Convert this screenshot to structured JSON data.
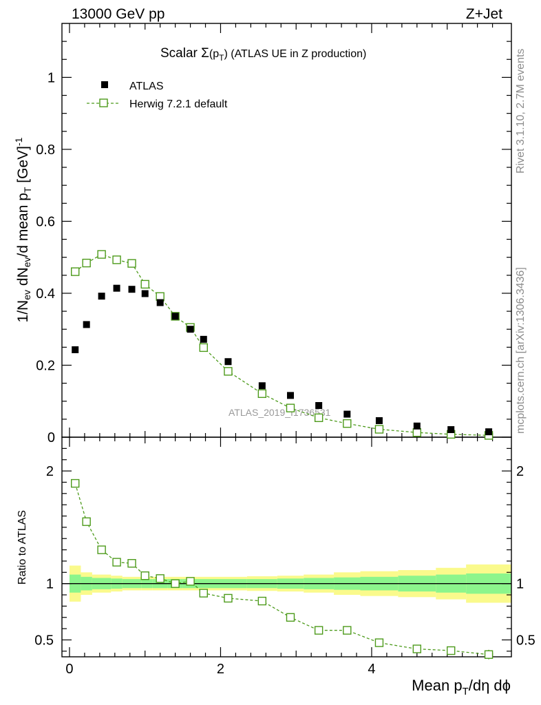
{
  "header": {
    "energy_label": "13000 GeV pp",
    "process_label": "Z+Jet"
  },
  "side_labels": {
    "rivet": "Rivet 3.1.10,  2.7M events",
    "mcplots": "mcplots.cern.ch [arXiv:1306.3436]"
  },
  "colors": {
    "mc": "#4c9a1a",
    "band_inner": "#8cf58c",
    "band_outer": "#fafa8c",
    "data": "#000000",
    "watermark": "#999999"
  },
  "chart_data": [
    {
      "id": "main",
      "type": "scatter",
      "title": "Scalar Σ(p_T) (ATLAS UE in Z production)",
      "title_parts": {
        "pre": "Scalar ",
        "sigma": "Σ",
        "open": "(p",
        "sub": "T",
        "close": ")",
        "post": " (ATLAS UE in Z production)"
      },
      "ylabel": "1/N_ev dN_ev/d mean p_T [GeV]^-1",
      "ylabel_parts": {
        "a": "1/N",
        "a_sub": "ev",
        "b": " dN",
        "b_sub": "ev",
        "c": "/d mean p",
        "c_sub": "T",
        "d": " [GeV]",
        "d_sup": "-1"
      },
      "xlabel": "",
      "xlim": [
        -0.1,
        5.85
      ],
      "ylim": [
        0,
        1.15
      ],
      "yticks": [
        0,
        0.2,
        0.4,
        0.6,
        0.8,
        1
      ],
      "ytick_labels": [
        "0",
        "0.2",
        "0.4",
        "0.6",
        "0.8",
        "1"
      ],
      "watermark": "ATLAS_2019_I1736531",
      "legend": {
        "position": "top-left",
        "entries": [
          "ATLAS",
          "Herwig 7.2.1 default"
        ]
      },
      "series": [
        {
          "name": "ATLAS",
          "marker": "filled-square",
          "x": [
            0.075,
            0.225,
            0.425,
            0.625,
            0.825,
            1.0,
            1.2,
            1.4,
            1.6,
            1.775,
            2.1,
            2.55,
            2.925,
            3.3,
            3.675,
            4.1,
            4.6,
            5.05,
            5.55
          ],
          "y": [
            0.243,
            0.313,
            0.392,
            0.414,
            0.411,
            0.399,
            0.374,
            0.336,
            0.3,
            0.272,
            0.21,
            0.143,
            0.116,
            0.088,
            0.064,
            0.046,
            0.031,
            0.021,
            0.015
          ]
        },
        {
          "name": "Herwig 7.2.1 default",
          "marker": "open-square-dashed-line",
          "x": [
            0.075,
            0.225,
            0.425,
            0.625,
            0.825,
            1.0,
            1.2,
            1.4,
            1.6,
            1.775,
            2.1,
            2.55,
            2.925,
            3.3,
            3.675,
            4.1,
            4.6,
            5.05,
            5.55
          ],
          "y": [
            0.46,
            0.484,
            0.508,
            0.493,
            0.483,
            0.425,
            0.391,
            0.336,
            0.305,
            0.249,
            0.183,
            0.121,
            0.081,
            0.054,
            0.038,
            0.022,
            0.013,
            0.008,
            0.005
          ]
        }
      ]
    },
    {
      "id": "ratio",
      "type": "line",
      "ylabel": "Ratio to ATLAS",
      "xlabel": "Mean p_T/dη dϕ",
      "xlabel_parts": {
        "a": "Mean p",
        "sub": "T",
        "b": "/dη dϕ"
      },
      "xlim": [
        -0.1,
        5.85
      ],
      "ylim": [
        0.35,
        2.3
      ],
      "yticks": [
        0.5,
        1,
        2
      ],
      "ytick_labels": [
        "0.5",
        "1",
        "2"
      ],
      "xticks": [
        0,
        2,
        4
      ],
      "xtick_labels": [
        "0",
        "2",
        "4"
      ],
      "bins": [
        0,
        0.15,
        0.3,
        0.55,
        0.7,
        0.95,
        1.1,
        1.3,
        1.5,
        1.7,
        1.85,
        2.35,
        2.75,
        3.1,
        3.5,
        3.85,
        4.35,
        4.85,
        5.25,
        5.85
      ],
      "band_inner": [
        0.08,
        0.06,
        0.05,
        0.045,
        0.04,
        0.04,
        0.04,
        0.04,
        0.04,
        0.04,
        0.04,
        0.04,
        0.045,
        0.05,
        0.055,
        0.06,
        0.07,
        0.08,
        0.09
      ],
      "band_outer": [
        0.16,
        0.1,
        0.08,
        0.07,
        0.06,
        0.06,
        0.06,
        0.06,
        0.06,
        0.06,
        0.06,
        0.065,
        0.07,
        0.08,
        0.1,
        0.11,
        0.12,
        0.14,
        0.17
      ],
      "series": [
        {
          "name": "Herwig 7.2.1 default",
          "x": [
            0.075,
            0.225,
            0.425,
            0.625,
            0.825,
            1.0,
            1.2,
            1.4,
            1.6,
            1.775,
            2.1,
            2.55,
            2.925,
            3.3,
            3.675,
            4.1,
            4.6,
            5.05,
            5.55
          ],
          "y": [
            1.89,
            1.55,
            1.3,
            1.19,
            1.18,
            1.07,
            1.045,
            1.0,
            1.02,
            0.915,
            0.87,
            0.845,
            0.7,
            0.585,
            0.585,
            0.475,
            0.42,
            0.405,
            0.37
          ],
          "err": [
            0.01,
            0.01,
            0.01,
            0.01,
            0.01,
            0.01,
            0.01,
            0.01,
            0.01,
            0.01,
            0.01,
            0.01,
            0.01,
            0.01,
            0.01,
            0.015,
            0.02,
            0.025,
            0.03
          ]
        }
      ]
    }
  ]
}
